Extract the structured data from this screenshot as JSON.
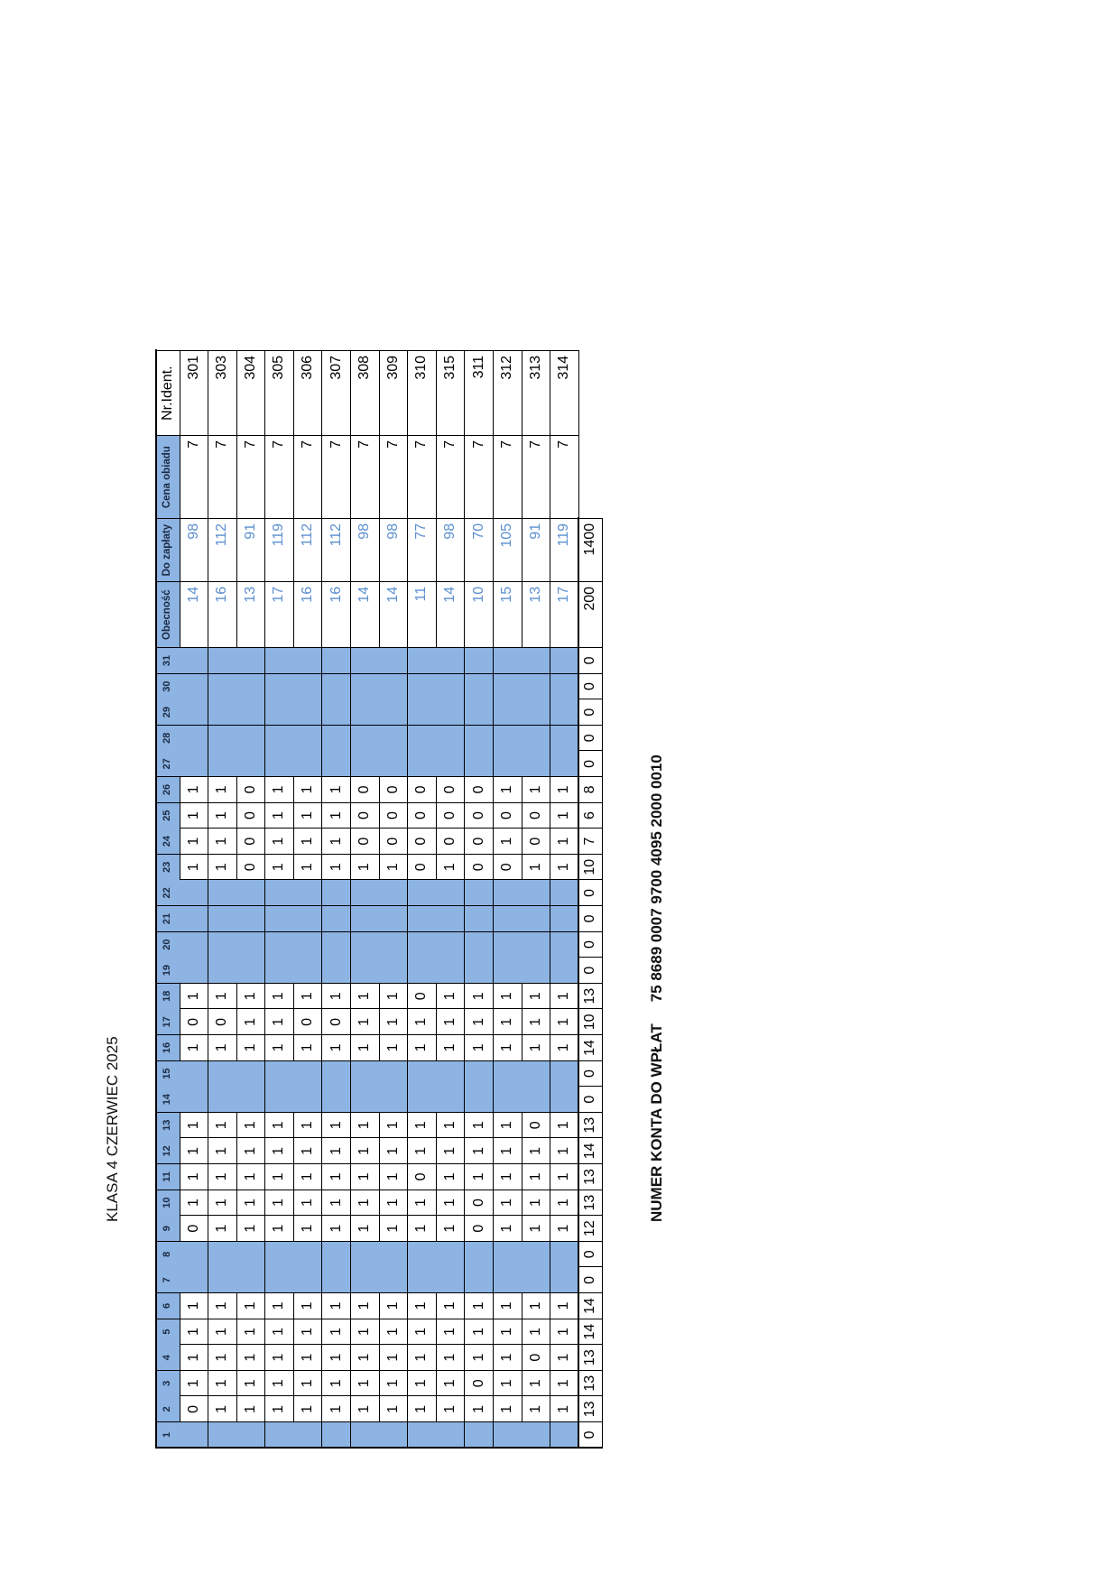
{
  "title": "KLASA 4 CZERWIEC 2025",
  "account": {
    "label": "NUMER KONTA  DO WPŁAT",
    "number": "75 8689 0007 9700 4095 2000 0010"
  },
  "table": {
    "day_headers": [
      "1",
      "2",
      "3",
      "4",
      "5",
      "6",
      "7",
      "8",
      "9",
      "10",
      "11",
      "12",
      "13",
      "14",
      "15",
      "16",
      "17",
      "18",
      "19",
      "20",
      "21",
      "22",
      "23",
      "24",
      "25",
      "26",
      "27",
      "28",
      "29",
      "30",
      "31"
    ],
    "col_headers": {
      "obecnosc": "Obecność",
      "do_zaplaty": "Do zapłaty",
      "cena": "Cena obiadu",
      "ident": "Nr.Ident."
    },
    "shaded_days": [
      1,
      7,
      8,
      14,
      15,
      19,
      20,
      21,
      22,
      27,
      28,
      29,
      30,
      31
    ],
    "rows": [
      {
        "days": [
          "",
          "0",
          "1",
          "1",
          "1",
          "1",
          "",
          "",
          "0",
          "1",
          "1",
          "1",
          "1",
          "",
          "",
          "1",
          "0",
          "1",
          "",
          "",
          "",
          "",
          "1",
          "1",
          "1",
          "1",
          "",
          "",
          "",
          "",
          ""
        ],
        "obecnosc": "14",
        "do_zaplaty": "98",
        "cena": "7",
        "ident": "301"
      },
      {
        "days": [
          "",
          "1",
          "1",
          "1",
          "1",
          "1",
          "",
          "",
          "1",
          "1",
          "1",
          "1",
          "1",
          "",
          "",
          "1",
          "0",
          "1",
          "",
          "",
          "",
          "",
          "1",
          "1",
          "1",
          "1",
          "",
          "",
          "",
          "",
          ""
        ],
        "obecnosc": "16",
        "do_zaplaty": "112",
        "cena": "7",
        "ident": "303"
      },
      {
        "days": [
          "",
          "1",
          "1",
          "1",
          "1",
          "1",
          "",
          "",
          "1",
          "1",
          "1",
          "1",
          "1",
          "",
          "",
          "1",
          "1",
          "1",
          "",
          "",
          "",
          "",
          "0",
          "0",
          "0",
          "0",
          "",
          "",
          "",
          "",
          ""
        ],
        "obecnosc": "13",
        "do_zaplaty": "91",
        "cena": "7",
        "ident": "304"
      },
      {
        "days": [
          "",
          "1",
          "1",
          "1",
          "1",
          "1",
          "",
          "",
          "1",
          "1",
          "1",
          "1",
          "1",
          "",
          "",
          "1",
          "1",
          "1",
          "",
          "",
          "",
          "",
          "1",
          "1",
          "1",
          "1",
          "",
          "",
          "",
          "",
          ""
        ],
        "obecnosc": "17",
        "do_zaplaty": "119",
        "cena": "7",
        "ident": "305"
      },
      {
        "days": [
          "",
          "1",
          "1",
          "1",
          "1",
          "1",
          "",
          "",
          "1",
          "1",
          "1",
          "1",
          "1",
          "",
          "",
          "1",
          "0",
          "1",
          "",
          "",
          "",
          "",
          "1",
          "1",
          "1",
          "1",
          "",
          "",
          "",
          "",
          ""
        ],
        "obecnosc": "16",
        "do_zaplaty": "112",
        "cena": "7",
        "ident": "306"
      },
      {
        "days": [
          "",
          "1",
          "1",
          "1",
          "1",
          "1",
          "",
          "",
          "1",
          "1",
          "1",
          "1",
          "1",
          "",
          "",
          "1",
          "0",
          "1",
          "",
          "",
          "",
          "",
          "1",
          "1",
          "1",
          "1",
          "",
          "",
          "",
          "",
          ""
        ],
        "obecnosc": "16",
        "do_zaplaty": "112",
        "cena": "7",
        "ident": "307"
      },
      {
        "days": [
          "",
          "1",
          "1",
          "1",
          "1",
          "1",
          "",
          "",
          "1",
          "1",
          "1",
          "1",
          "1",
          "",
          "",
          "1",
          "1",
          "1",
          "",
          "",
          "",
          "",
          "1",
          "0",
          "0",
          "0",
          "",
          "",
          "",
          "",
          ""
        ],
        "obecnosc": "14",
        "do_zaplaty": "98",
        "cena": "7",
        "ident": "308"
      },
      {
        "days": [
          "",
          "1",
          "1",
          "1",
          "1",
          "1",
          "",
          "",
          "1",
          "1",
          "1",
          "1",
          "1",
          "",
          "",
          "1",
          "1",
          "1",
          "",
          "",
          "",
          "",
          "1",
          "0",
          "0",
          "0",
          "",
          "",
          "",
          "",
          ""
        ],
        "obecnosc": "14",
        "do_zaplaty": "98",
        "cena": "7",
        "ident": "309"
      },
      {
        "days": [
          "",
          "1",
          "1",
          "1",
          "1",
          "1",
          "",
          "",
          "1",
          "1",
          "0",
          "1",
          "1",
          "",
          "",
          "1",
          "1",
          "0",
          "",
          "",
          "",
          "",
          "0",
          "0",
          "0",
          "0",
          "",
          "",
          "",
          "",
          ""
        ],
        "obecnosc": "11",
        "do_zaplaty": "77",
        "cena": "7",
        "ident": "310"
      },
      {
        "days": [
          "",
          "1",
          "1",
          "1",
          "1",
          "1",
          "",
          "",
          "1",
          "1",
          "1",
          "1",
          "1",
          "",
          "",
          "1",
          "1",
          "1",
          "",
          "",
          "",
          "",
          "1",
          "0",
          "0",
          "0",
          "",
          "",
          "",
          "",
          ""
        ],
        "obecnosc": "14",
        "do_zaplaty": "98",
        "cena": "7",
        "ident": "315"
      },
      {
        "days": [
          "",
          "1",
          "0",
          "1",
          "1",
          "1",
          "",
          "",
          "0",
          "0",
          "1",
          "1",
          "1",
          "",
          "",
          "1",
          "1",
          "1",
          "",
          "",
          "",
          "",
          "0",
          "0",
          "0",
          "0",
          "",
          "",
          "",
          "",
          ""
        ],
        "obecnosc": "10",
        "do_zaplaty": "70",
        "cena": "7",
        "ident": "311"
      },
      {
        "days": [
          "",
          "1",
          "1",
          "1",
          "1",
          "1",
          "",
          "",
          "1",
          "1",
          "1",
          "1",
          "1",
          "",
          "",
          "1",
          "1",
          "1",
          "",
          "",
          "",
          "",
          "0",
          "1",
          "0",
          "1",
          "",
          "",
          "",
          "",
          ""
        ],
        "obecnosc": "15",
        "do_zaplaty": "105",
        "cena": "7",
        "ident": "312"
      },
      {
        "days": [
          "",
          "1",
          "1",
          "0",
          "1",
          "1",
          "",
          "",
          "1",
          "1",
          "1",
          "1",
          "0",
          "",
          "",
          "1",
          "1",
          "1",
          "",
          "",
          "",
          "",
          "1",
          "0",
          "0",
          "1",
          "",
          "",
          "",
          "",
          ""
        ],
        "obecnosc": "13",
        "do_zaplaty": "91",
        "cena": "7",
        "ident": "313"
      },
      {
        "days": [
          "",
          "1",
          "1",
          "1",
          "1",
          "1",
          "",
          "",
          "1",
          "1",
          "1",
          "1",
          "1",
          "",
          "",
          "1",
          "1",
          "1",
          "",
          "",
          "",
          "",
          "1",
          "1",
          "1",
          "1",
          "",
          "",
          "",
          "",
          ""
        ],
        "obecnosc": "17",
        "do_zaplaty": "119",
        "cena": "7",
        "ident": "314"
      }
    ],
    "totals": {
      "days": [
        "0",
        "13",
        "13",
        "13",
        "14",
        "14",
        "0",
        "0",
        "12",
        "13",
        "13",
        "14",
        "13",
        "0",
        "0",
        "14",
        "10",
        "13",
        "0",
        "0",
        "0",
        "0",
        "10",
        "7",
        "6",
        "8",
        "0",
        "0",
        "0",
        "0",
        "0"
      ],
      "obecnosc": "200",
      "do_zaplaty": "1400"
    }
  },
  "colors": {
    "shade": "#8db4e2",
    "computed_value": "#5b8fd0",
    "border": "#000000"
  }
}
